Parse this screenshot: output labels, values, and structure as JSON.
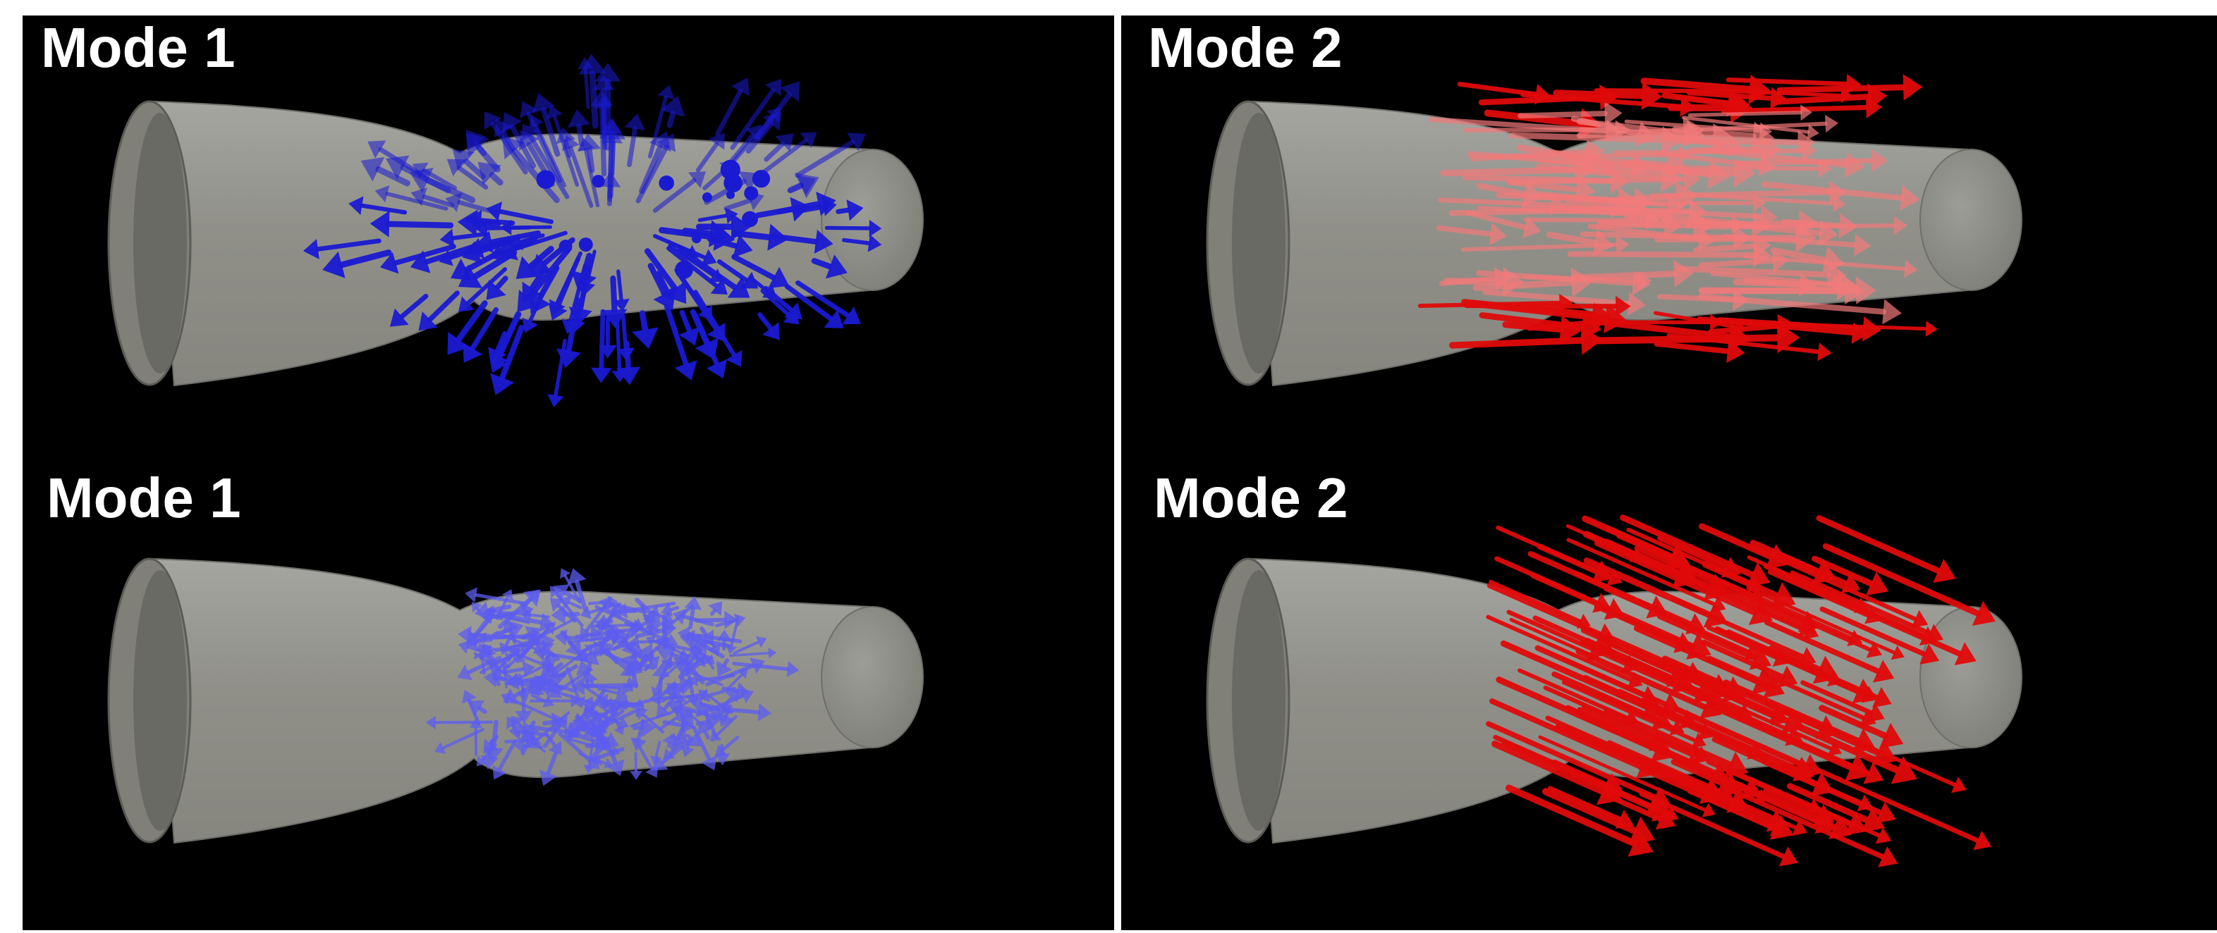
{
  "colors": {
    "background": "#000000",
    "divider": "#ffffff",
    "vessel": "#8f8f8b",
    "mode1_arrows": "#1a1ad2",
    "mode2_arrows": "#e00a0a"
  },
  "panels": [
    {
      "views": [
        {
          "label": "Mode 1",
          "arrow_color": "mode1_arrows"
        },
        {
          "label": "Mode 1",
          "arrow_color": "mode1_arrows"
        }
      ]
    },
    {
      "views": [
        {
          "label": "Mode 2",
          "arrow_color": "mode2_arrows"
        },
        {
          "label": "Mode 2",
          "arrow_color": "mode2_arrows"
        }
      ]
    }
  ]
}
